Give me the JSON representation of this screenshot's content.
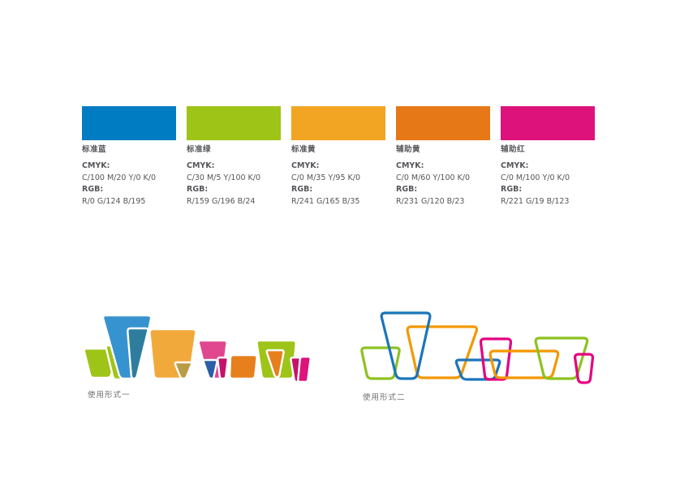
{
  "palette": {
    "swatches": [
      {
        "name": "标准蓝",
        "cmyk_label": "CMYK:",
        "cmyk_value": "C/100 M/20 Y/0 K/0",
        "rgb_label": "RGB:",
        "rgb_value": "R/0 G/124 B/195",
        "hex": "#007CC3"
      },
      {
        "name": "标准绿",
        "cmyk_label": "CMYK:",
        "cmyk_value": "C/30 M/5 Y/100 K/0",
        "rgb_label": "RGB:",
        "rgb_value": "R/159 G/196 B/24",
        "hex": "#9FC418"
      },
      {
        "name": "标准黄",
        "cmyk_label": "CMYK:",
        "cmyk_value": "C/0 M/35 Y/95 K/0",
        "rgb_label": "RGB:",
        "rgb_value": "R/241 G/165 B/35",
        "hex": "#F1A523"
      },
      {
        "name": "辅助黄",
        "cmyk_label": "CMYK:",
        "cmyk_value": "C/0 M/60 Y/100 K/0",
        "rgb_label": "RGB:",
        "rgb_value": "R/231 G/120 B/23",
        "hex": "#E77817"
      },
      {
        "name": "辅助红",
        "cmyk_label": "CMYK:",
        "cmyk_value": "C/0 M/100 Y/0 K/0",
        "rgb_label": "RGB:",
        "rgb_value": "R/221 G/19 B/123",
        "hex": "#DD137B"
      }
    ]
  },
  "usage_forms": {
    "form1_label": "使用形式一",
    "form2_label": "使用形式二"
  },
  "logo_colors": {
    "blue": "#3793CF",
    "teal": "#2E7D9E",
    "green": "#9FC418",
    "golden": "#F2A93B",
    "orange": "#E77F1C",
    "pink": "#E0478F",
    "magenta": "#DD137B",
    "deep_magenta": "#C41368",
    "royal_blue": "#2B5EA7",
    "olive": "#B89B45",
    "outline_blue": "#1B75BB",
    "outline_green": "#8DC21F",
    "outline_orange": "#F39800",
    "outline_magenta": "#E4007F"
  }
}
